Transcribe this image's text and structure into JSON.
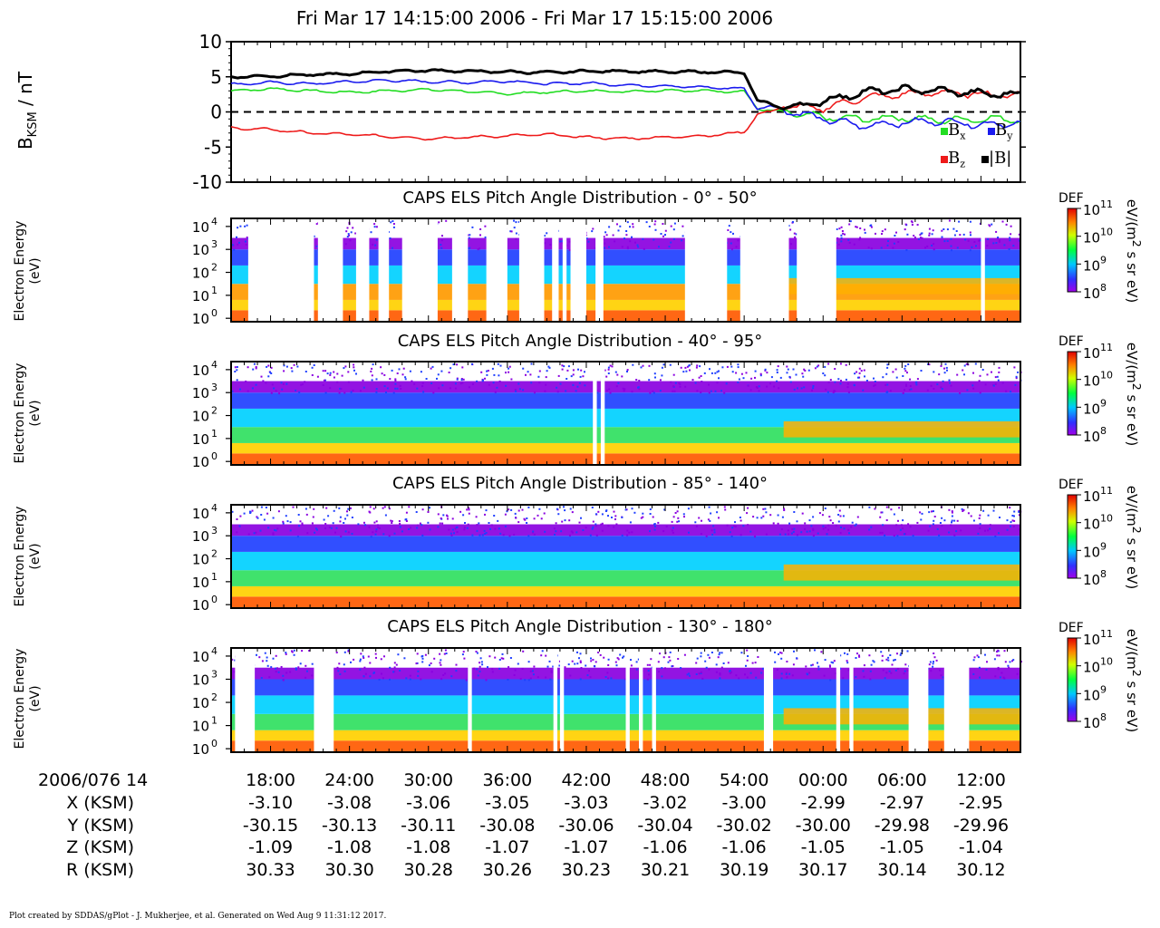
{
  "title": "Fri Mar 17 14:15:00 2006 - Fri Mar 17 15:15:00 2006",
  "footer": "Plot created by SDDAS/gPlot - J. Mukherjee, et al.  Generated on Wed Aug 9 11:31:12 2017.",
  "colors": {
    "bx": "#22dd22",
    "by": "#1a1aee",
    "bz": "#ee1a1a",
    "btot": "#000000"
  },
  "chart_data": [
    {
      "type": "line",
      "ylabel": "B_KSM / nT",
      "ylabel_main": "B",
      "ylabel_sub": "KSM",
      "ylabel_unit": "/ nT",
      "ylim": [
        -10,
        10
      ],
      "yticks": [
        10,
        5,
        0,
        -5,
        -10
      ],
      "ytick_labels": [
        "10",
        "5",
        "0",
        "-5",
        "-10"
      ],
      "zero_line": "dashed",
      "legend": [
        {
          "base": "B",
          "sub": "x",
          "color": "#22dd22"
        },
        {
          "base": "B",
          "sub": "y",
          "color": "#1a1aee"
        },
        {
          "base": "B",
          "sub": "z",
          "color": "#ee1a1a"
        },
        {
          "base": "|B|",
          "sub": "",
          "color": "#000000"
        }
      ],
      "legend_position": "bottom-right",
      "x_minutes": [
        0,
        3,
        6,
        9,
        12,
        15,
        18,
        21,
        24,
        27,
        30,
        33,
        36,
        39,
        40,
        41,
        42,
        45,
        48,
        51,
        54,
        57,
        60
      ],
      "series": [
        {
          "name": "Bx",
          "values": [
            3.0,
            3.3,
            3.0,
            2.8,
            3.0,
            3.2,
            2.9,
            2.6,
            2.8,
            3.0,
            2.9,
            3.1,
            3.0,
            2.9,
            0.5,
            0.2,
            0.0,
            -0.8,
            -1.0,
            -0.8,
            -1.2,
            -1.0,
            -1.0
          ]
        },
        {
          "name": "By",
          "values": [
            3.9,
            4.2,
            4.0,
            4.3,
            4.5,
            4.3,
            4.2,
            4.4,
            4.0,
            4.1,
            3.8,
            3.7,
            3.5,
            3.3,
            0.5,
            0.8,
            0.3,
            -1.0,
            -2.0,
            -1.5,
            -1.3,
            -1.8,
            -1.6
          ]
        },
        {
          "name": "Bz",
          "values": [
            -2.3,
            -2.5,
            -3.0,
            -3.2,
            -3.5,
            -3.8,
            -3.6,
            -3.4,
            -3.2,
            -3.6,
            -3.8,
            -3.6,
            -3.4,
            -2.9,
            -0.3,
            0.0,
            0.8,
            0.5,
            2.0,
            2.5,
            2.8,
            2.5,
            2.4
          ]
        },
        {
          "name": "|B|",
          "values": [
            5.0,
            5.1,
            5.3,
            5.4,
            5.8,
            5.9,
            5.8,
            5.7,
            5.6,
            5.8,
            5.8,
            5.7,
            5.7,
            5.6,
            1.5,
            1.2,
            0.5,
            1.5,
            2.8,
            3.2,
            3.0,
            2.6,
            2.5
          ]
        }
      ]
    },
    {
      "type": "heatmap",
      "title": "CAPS ELS Pitch Angle Distribution - 0° - 50°",
      "ylabel": "Electron Energy (eV)",
      "ylabel_line1": "Electron Energy",
      "ylabel_line2": "(eV)",
      "yscale": "log",
      "yticks": [
        "10",
        "10",
        "10",
        "10",
        "10"
      ],
      "ytick_exp": [
        "0",
        "1",
        "2",
        "3",
        "4"
      ],
      "gaps_minutes": [
        [
          1.3,
          6.3
        ],
        [
          6.6,
          8.5
        ],
        [
          9.5,
          10.5
        ],
        [
          11.2,
          12.0
        ],
        [
          13.0,
          15.7
        ],
        [
          16.8,
          18.0
        ],
        [
          19.4,
          21.0
        ],
        [
          21.9,
          23.8
        ],
        [
          24.4,
          24.9
        ],
        [
          25.2,
          25.5
        ],
        [
          25.8,
          27.0
        ],
        [
          27.7,
          28.3
        ],
        [
          34.5,
          37.7
        ],
        [
          38.7,
          42.4
        ],
        [
          43.0,
          46.0
        ],
        [
          57.0,
          57.3
        ]
      ]
    },
    {
      "type": "heatmap",
      "title": "CAPS ELS Pitch Angle Distribution - 40° - 95°",
      "ylabel": "Electron Energy (eV)",
      "ylabel_line1": "Electron Energy",
      "ylabel_line2": "(eV)",
      "yscale": "log",
      "yticks": [
        "10",
        "10",
        "10",
        "10",
        "10"
      ],
      "ytick_exp": [
        "0",
        "1",
        "2",
        "3",
        "4"
      ],
      "gaps_minutes": [
        [
          27.5,
          27.8
        ],
        [
          28.1,
          28.4
        ]
      ]
    },
    {
      "type": "heatmap",
      "title": "CAPS ELS Pitch Angle Distribution - 85° - 140°",
      "ylabel": "Electron Energy (eV)",
      "ylabel_line1": "Electron Energy",
      "ylabel_line2": "(eV)",
      "yscale": "log",
      "yticks": [
        "10",
        "10",
        "10",
        "10",
        "10"
      ],
      "ytick_exp": [
        "0",
        "1",
        "2",
        "3",
        "4"
      ],
      "gaps_minutes": []
    },
    {
      "type": "heatmap",
      "title": "CAPS ELS Pitch Angle Distribution - 130° - 180°",
      "ylabel": "Electron Energy (eV)",
      "ylabel_line1": "Electron Energy",
      "ylabel_line2": "(eV)",
      "yscale": "log",
      "yticks": [
        "10",
        "10",
        "10",
        "10",
        "10"
      ],
      "ytick_exp": [
        "0",
        "1",
        "2",
        "3",
        "4"
      ],
      "gaps_minutes": [
        [
          0.3,
          1.8
        ],
        [
          6.3,
          7.8
        ],
        [
          18.0,
          18.3
        ],
        [
          24.5,
          24.8
        ],
        [
          25.0,
          25.3
        ],
        [
          30.0,
          30.3
        ],
        [
          31.0,
          31.3
        ],
        [
          32.0,
          32.3
        ],
        [
          40.5,
          41.2
        ],
        [
          46.0,
          46.3
        ],
        [
          47.0,
          47.3
        ],
        [
          51.5,
          53.0
        ],
        [
          54.2,
          56.1
        ]
      ]
    }
  ],
  "colorbar": {
    "label_def": "DEF",
    "unit_prefix": "eV/(m",
    "unit_sup": "2",
    "unit_suffix": " s sr eV)",
    "tick_base": [
      "10",
      "10",
      "10",
      "10"
    ],
    "tick_exp": [
      "11",
      "10",
      "9",
      "8"
    ]
  },
  "ephemeris": {
    "date_label": "2006/076 14",
    "row_labels": [
      "X (KSM)",
      "Y (KSM)",
      "Z (KSM)",
      "R (KSM)"
    ],
    "times": [
      "18:00",
      "24:00",
      "30:00",
      "36:00",
      "42:00",
      "48:00",
      "54:00",
      "00:00",
      "06:00",
      "12:00"
    ],
    "x": [
      "-3.10",
      "-3.08",
      "-3.06",
      "-3.05",
      "-3.03",
      "-3.02",
      "-3.00",
      "-2.99",
      "-2.97",
      "-2.95"
    ],
    "y": [
      "-30.15",
      "-30.13",
      "-30.11",
      "-30.08",
      "-30.06",
      "-30.04",
      "-30.02",
      "-30.00",
      "-29.98",
      "-29.96"
    ],
    "z": [
      "-1.09",
      "-1.08",
      "-1.08",
      "-1.07",
      "-1.07",
      "-1.06",
      "-1.06",
      "-1.05",
      "-1.05",
      "-1.04"
    ],
    "r": [
      "30.33",
      "30.30",
      "30.28",
      "30.26",
      "30.23",
      "30.21",
      "30.19",
      "30.17",
      "30.14",
      "30.12"
    ]
  }
}
